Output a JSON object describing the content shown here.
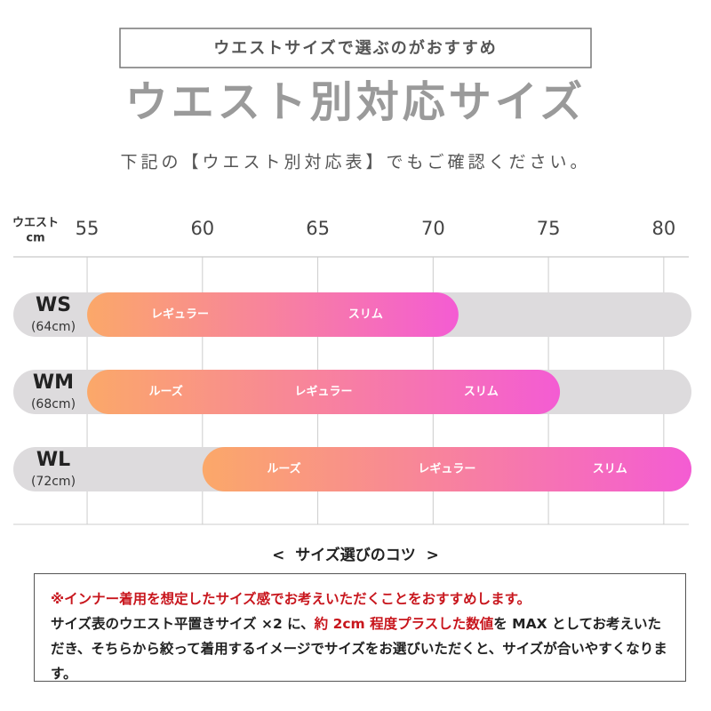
{
  "header": {
    "tagline": "ウエストサイズで選ぶのがおすすめ",
    "title": "ウエスト別対応サイズ",
    "subtitle": "下記の【ウエスト別対応表】でもご確認ください。"
  },
  "chart_data": {
    "type": "range",
    "x_label": "ウエスト",
    "x_unit": "cm",
    "xlim": [
      51.8,
      81.2
    ],
    "xticks": [
      55,
      60,
      65,
      70,
      75,
      80
    ],
    "grid": true,
    "track_color": "#dddbdd",
    "gradient": [
      "#fba869",
      "#f45cd3"
    ],
    "series": [
      {
        "name": "WS",
        "note": "(64cm)",
        "start": 55,
        "end": 71.1,
        "labels": [
          "レギュラー",
          "スリム"
        ]
      },
      {
        "name": "WM",
        "note": "(68cm)",
        "start": 55,
        "end": 75.5,
        "labels": [
          "ルーズ",
          "レギュラー",
          "スリム"
        ]
      },
      {
        "name": "WL",
        "note": "(72cm)",
        "start": 60,
        "end": 81.2,
        "labels": [
          "ルーズ",
          "レギュラー",
          "スリム"
        ]
      }
    ]
  },
  "tips": {
    "heading": "<  サイズ選びのコツ  >",
    "note": "※インナー着用を想定したサイズ感でお考えいただくことをおすすめします。",
    "body_start": "サイズ表のウエスト平置きサイズ ×2 に、",
    "body_highlight": "約 2cm 程度プラスした数値",
    "body_end": "を MAX としてお考えいただき、そちらから絞って着用するイメージでサイズをお選びいただくと、サイズが合いやすくなります。"
  }
}
